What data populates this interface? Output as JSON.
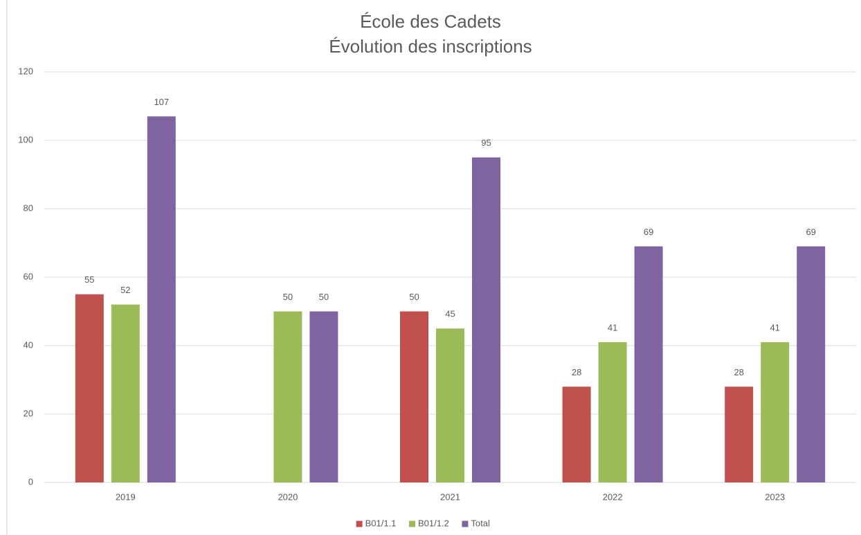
{
  "chart_data": {
    "type": "bar",
    "title": "École des Cadets",
    "subtitle": "Évolution des inscriptions",
    "categories": [
      "2019",
      "2020",
      "2021",
      "2022",
      "2023"
    ],
    "series": [
      {
        "name": "B01/1.1",
        "color": "#c0504d",
        "values": [
          55,
          null,
          50,
          28,
          28
        ]
      },
      {
        "name": "B01/1.2",
        "color": "#9bbb59",
        "values": [
          52,
          50,
          45,
          41,
          41
        ]
      },
      {
        "name": "Total",
        "color": "#8064a2",
        "values": [
          107,
          50,
          95,
          69,
          69
        ]
      }
    ],
    "ylim": [
      0,
      120
    ],
    "yticks": [
      0,
      20,
      40,
      60,
      80,
      100,
      120
    ],
    "grid": true,
    "legend": "bottom"
  }
}
